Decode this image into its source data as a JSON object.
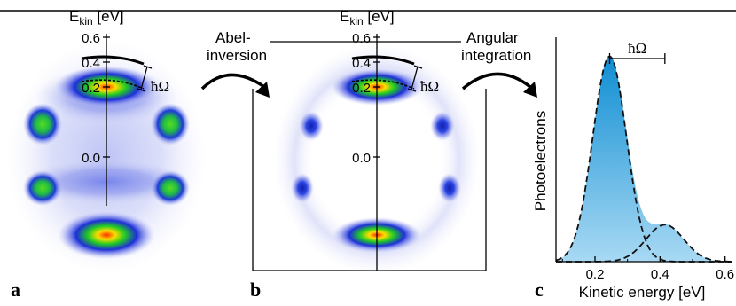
{
  "panels": {
    "a": {
      "label": "a",
      "axis_label": "E",
      "axis_sub": "kin",
      "axis_unit": " [eV]",
      "ticks": [
        "0.6",
        "0.4",
        "0.2",
        "0.0"
      ],
      "hbar_omega": "ħΩ"
    },
    "b": {
      "label": "b",
      "axis_label": "E",
      "axis_sub": "kin",
      "axis_unit": " [eV]",
      "ticks": [
        "0.6",
        "0.4",
        "0.2",
        "0.0"
      ],
      "hbar_omega": "ħΩ"
    },
    "c": {
      "label": "c",
      "hbar_omega": "ħΩ"
    }
  },
  "arrows": {
    "abel": {
      "line1": "Abel-",
      "line2": "inversion"
    },
    "angular": {
      "line1": "Angular",
      "line2": "integration"
    }
  },
  "colors": {
    "spectrum_fill_top": "#0f8ed2",
    "spectrum_fill_bottom": "#a8d9f4",
    "image_blue": "#2233cc",
    "image_green": "#22cc33",
    "image_red": "#ee2200"
  },
  "chart_data": {
    "type": "area",
    "xlabel": "Kinetic energy [eV]",
    "ylabel": "Photoelectrons",
    "xlim": [
      0.08,
      0.62
    ],
    "ylim": [
      0,
      1.05
    ],
    "x_ticks": [
      "0.2",
      "0.4",
      "0.6"
    ],
    "x_tick_values": [
      0.2,
      0.4,
      0.6
    ],
    "grid": false,
    "legend": "none",
    "annotation": "ħΩ",
    "components": [
      {
        "center": 0.245,
        "sigma": 0.052,
        "amplitude": 1.0
      },
      {
        "center": 0.415,
        "sigma": 0.058,
        "amplitude": 0.18
      }
    ],
    "peak_markers": [
      0.245,
      0.415
    ]
  }
}
